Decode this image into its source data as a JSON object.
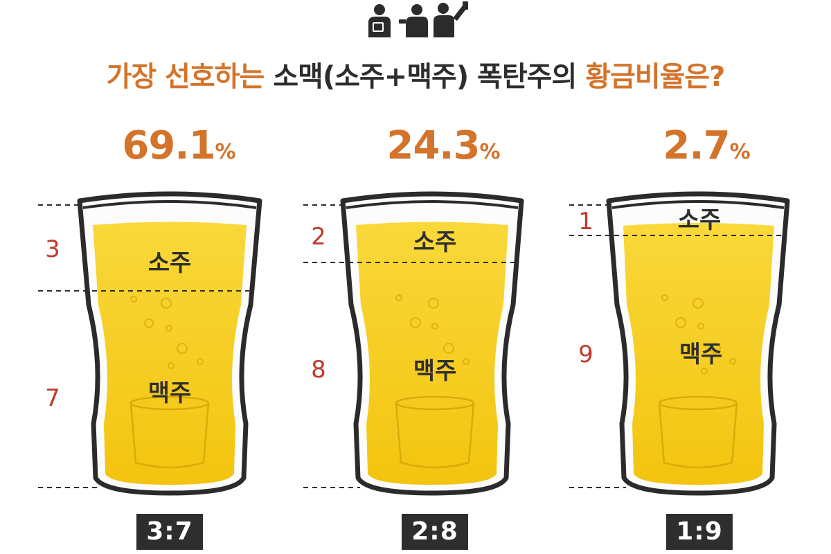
{
  "title": {
    "part1": "가장 선호하는 ",
    "part2": "소맥(소주+맥주) 폭탄주의 ",
    "part3": "황금비율은?"
  },
  "colors": {
    "accent": "#d4732a",
    "ratio_number": "#c0392b",
    "beer": "#f7cf1c",
    "label_bg": "#2e2e2e",
    "glass_outline": "#2b2b2b"
  },
  "chart_data": {
    "type": "bar",
    "categories": [
      "3:7",
      "2:8",
      "1:9"
    ],
    "values": [
      69.1,
      24.3,
      2.7
    ],
    "unit": "%",
    "glasses": [
      {
        "percent": "69.1",
        "ratio": "3:7",
        "soju_parts": "3",
        "beer_parts": "7",
        "soju_label": "소주",
        "beer_label": "맥주"
      },
      {
        "percent": "24.3",
        "ratio": "2:8",
        "soju_parts": "2",
        "beer_parts": "8",
        "soju_label": "소주",
        "beer_label": "맥주"
      },
      {
        "percent": "2.7",
        "ratio": "1:9",
        "soju_parts": "1",
        "beer_parts": "9",
        "soju_label": "소주",
        "beer_label": "맥주"
      }
    ]
  },
  "percent_symbol": "%",
  "icon": "people-drinking-icon"
}
